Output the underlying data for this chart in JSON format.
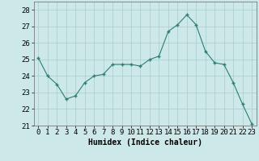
{
  "x": [
    0,
    1,
    2,
    3,
    4,
    5,
    6,
    7,
    8,
    9,
    10,
    11,
    12,
    13,
    14,
    15,
    16,
    17,
    18,
    19,
    20,
    21,
    22,
    23
  ],
  "y": [
    25.1,
    24.0,
    23.5,
    22.6,
    22.8,
    23.6,
    24.0,
    24.1,
    24.7,
    24.7,
    24.7,
    24.6,
    25.0,
    25.2,
    26.7,
    27.1,
    27.7,
    27.1,
    25.5,
    24.8,
    24.7,
    23.6,
    22.3,
    21.1
  ],
  "line_color": "#2e7d6e",
  "marker": "+",
  "marker_size": 3.5,
  "bg_color": "#cce8e8",
  "grid_color": "#aacccc",
  "xlabel": "Humidex (Indice chaleur)",
  "xlim": [
    -0.5,
    23.5
  ],
  "ylim": [
    21,
    28.5
  ],
  "yticks": [
    21,
    22,
    23,
    24,
    25,
    26,
    27,
    28
  ],
  "xticks": [
    0,
    1,
    2,
    3,
    4,
    5,
    6,
    7,
    8,
    9,
    10,
    11,
    12,
    13,
    14,
    15,
    16,
    17,
    18,
    19,
    20,
    21,
    22,
    23
  ],
  "xlabel_fontsize": 7,
  "tick_fontsize": 6.5
}
